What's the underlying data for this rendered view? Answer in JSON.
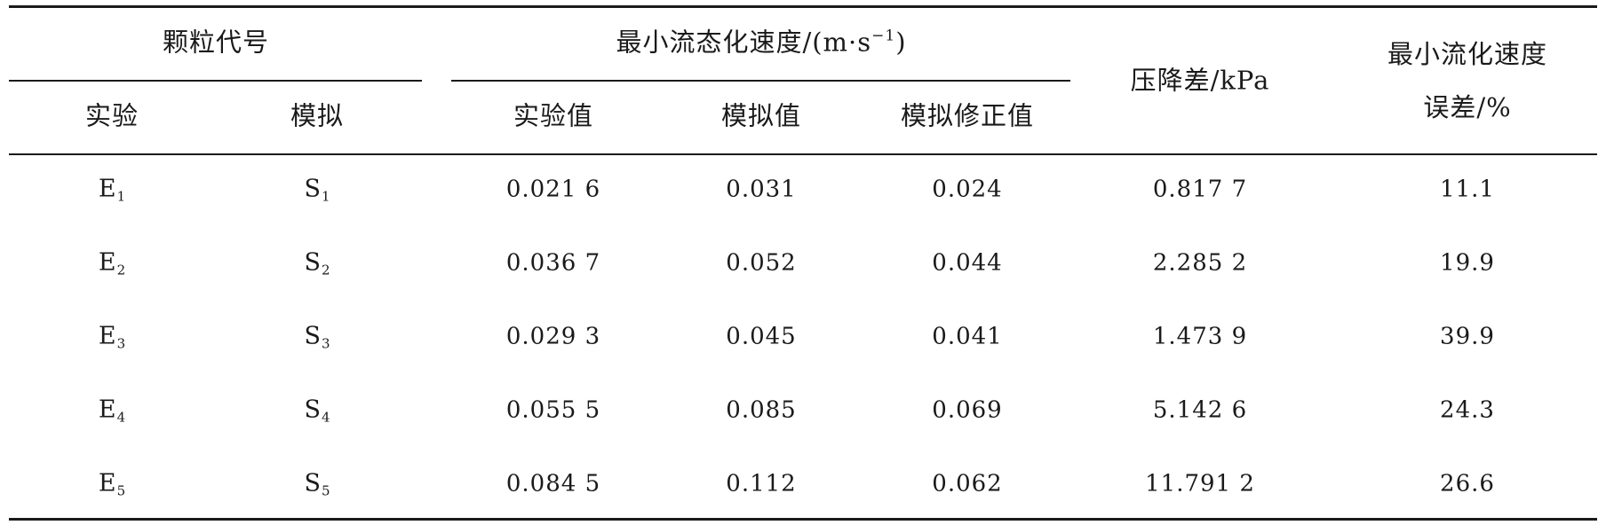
{
  "table": {
    "header": {
      "group_particle": "颗粒代号",
      "sub_experiment": "实验",
      "sub_simulation": "模拟",
      "group_velocity_prefix": "最小流态化速度/(m·s",
      "group_velocity_exponent": "−1",
      "group_velocity_suffix": ")",
      "sub_exp_value": "实验值",
      "sub_sim_value": "模拟值",
      "sub_sim_corrected": "模拟修正值",
      "pressure_drop": "压降差/kPa",
      "error_line1": "最小流化速度",
      "error_line2": "误差/%"
    },
    "rows": [
      {
        "exp_letter": "E",
        "exp_sub": "1",
        "sim_letter": "S",
        "sim_sub": "1",
        "exp_value": "0.021 6",
        "sim_value": "0.031",
        "corrected": "0.024",
        "pressure": "0.817 7",
        "error": "11.1"
      },
      {
        "exp_letter": "E",
        "exp_sub": "2",
        "sim_letter": "S",
        "sim_sub": "2",
        "exp_value": "0.036 7",
        "sim_value": "0.052",
        "corrected": "0.044",
        "pressure": "2.285 2",
        "error": "19.9"
      },
      {
        "exp_letter": "E",
        "exp_sub": "3",
        "sim_letter": "S",
        "sim_sub": "3",
        "exp_value": "0.029 3",
        "sim_value": "0.045",
        "corrected": "0.041",
        "pressure": "1.473 9",
        "error": "39.9"
      },
      {
        "exp_letter": "E",
        "exp_sub": "4",
        "sim_letter": "S",
        "sim_sub": "4",
        "exp_value": "0.055 5",
        "sim_value": "0.085",
        "corrected": "0.069",
        "pressure": "5.142 6",
        "error": "24.3"
      },
      {
        "exp_letter": "E",
        "exp_sub": "5",
        "sim_letter": "S",
        "sim_sub": "5",
        "exp_value": "0.084 5",
        "sim_value": "0.112",
        "corrected": "0.062",
        "pressure": "11.791 2",
        "error": "26.6"
      }
    ]
  }
}
